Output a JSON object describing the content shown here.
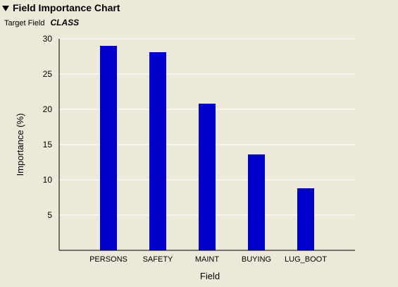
{
  "panel": {
    "title": "Field Importance Chart",
    "target_label": "Target Field",
    "target_value": "CLASS"
  },
  "colors": {
    "bar": "#0000CC",
    "grid": "#FFFFFF",
    "axis": "#000000",
    "background": "#ECE9D8"
  },
  "chart_data": {
    "type": "bar",
    "categories": [
      "PERSONS",
      "SAFETY",
      "MAINT",
      "BUYING",
      "LUG_BOOT"
    ],
    "values": [
      29,
      28.1,
      20.8,
      13.6,
      8.8
    ],
    "xlabel": "Field",
    "ylabel": "Importance (%)",
    "ylim": [
      0,
      30
    ],
    "yticks": [
      5,
      10,
      15,
      20,
      25,
      30
    ],
    "grid": true
  }
}
